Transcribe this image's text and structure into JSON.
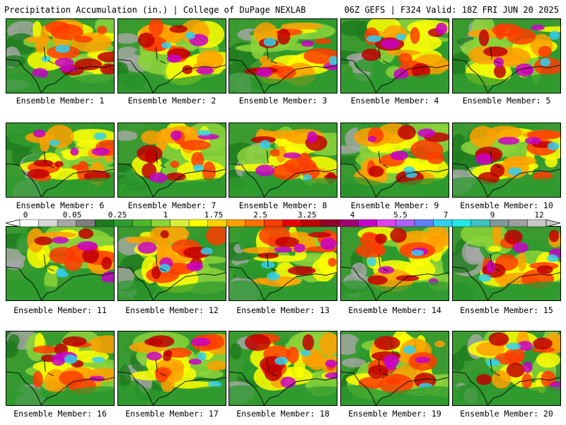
{
  "header": {
    "title_left": "Precipitation Accumulation (in.) | College of DuPage NEXLAB",
    "title_right": "06Z GEFS | F324 Valid: 18Z FRI JUN 20 2025"
  },
  "colorbar": {
    "tick_labels": [
      "0",
      "0.05",
      "0.25",
      "1",
      "1.75",
      "2.5",
      "3.25",
      "4",
      "5.5",
      "7",
      "9",
      "12"
    ],
    "colors": [
      "#ffffff",
      "#d6d6d6",
      "#a8a8a8",
      "#7e7e7e",
      "#1e7a1e",
      "#2e9a2e",
      "#4cb82c",
      "#8cd43a",
      "#d8f03c",
      "#ffff00",
      "#ffd200",
      "#ffa000",
      "#ff7000",
      "#ff3c00",
      "#e60000",
      "#c00000",
      "#900028",
      "#a00070",
      "#c800c8",
      "#e040f0",
      "#b060ff",
      "#6080ff",
      "#30d0f0",
      "#20e8e8",
      "#40c0c0",
      "#809898",
      "#a0a0a0",
      "#c8c8c8"
    ]
  },
  "members": [
    {
      "label": "Ensemble Member: 1"
    },
    {
      "label": "Ensemble Member: 2"
    },
    {
      "label": "Ensemble Member: 3"
    },
    {
      "label": "Ensemble Member: 4"
    },
    {
      "label": "Ensemble Member: 5"
    },
    {
      "label": "Ensemble Member: 6"
    },
    {
      "label": "Ensemble Member: 7"
    },
    {
      "label": "Ensemble Member: 8"
    },
    {
      "label": "Ensemble Member: 9"
    },
    {
      "label": "Ensemble Member: 10"
    },
    {
      "label": "Ensemble Member: 11"
    },
    {
      "label": "Ensemble Member: 12"
    },
    {
      "label": "Ensemble Member: 13"
    },
    {
      "label": "Ensemble Member: 14"
    },
    {
      "label": "Ensemble Member: 15"
    },
    {
      "label": "Ensemble Member: 16"
    },
    {
      "label": "Ensemble Member: 17"
    },
    {
      "label": "Ensemble Member: 18"
    },
    {
      "label": "Ensemble Member: 19"
    },
    {
      "label": "Ensemble Member: 20"
    }
  ]
}
